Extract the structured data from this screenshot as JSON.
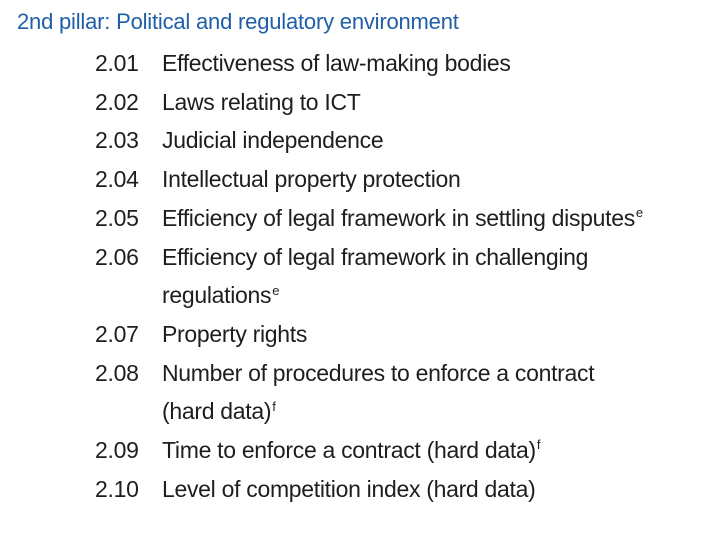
{
  "heading": "2nd pillar: Political and regulatory environment",
  "items": [
    {
      "num": "2.01",
      "text": "Effectiveness of law-making bodies",
      "note": ""
    },
    {
      "num": "2.02",
      "text": "Laws relating to ICT",
      "note": ""
    },
    {
      "num": "2.03",
      "text": "Judicial independence",
      "note": ""
    },
    {
      "num": "2.04",
      "text": "Intellectual property protection",
      "note": ""
    },
    {
      "num": "2.05",
      "text": "Efficiency of legal framework in settling disputes",
      "note": "e"
    },
    {
      "num": "2.06",
      "text": "Efficiency of legal framework in challenging regulations",
      "note": "e"
    },
    {
      "num": "2.07",
      "text": "Property rights",
      "note": ""
    },
    {
      "num": "2.08",
      "text": "Number of procedures to enforce a contract (hard data)",
      "note": "f"
    },
    {
      "num": "2.09",
      "text": "Time to enforce a contract (hard data)",
      "note": "f"
    },
    {
      "num": "2.10",
      "text": "Level of competition index (hard data)",
      "note": ""
    }
  ]
}
